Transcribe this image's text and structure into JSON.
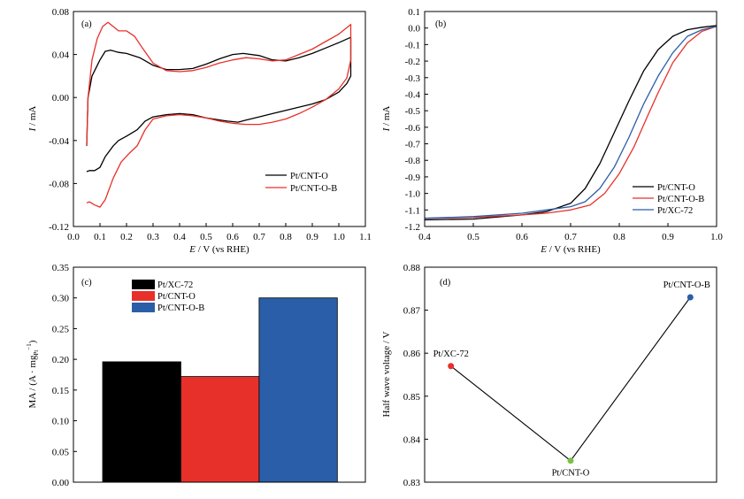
{
  "colors": {
    "black": "#000000",
    "red": "#e8302a",
    "blue": "#2a5ea8",
    "green": "#7ac143"
  },
  "chart_data": [
    {
      "id": "a",
      "panel_label": "(a)",
      "type": "line",
      "xlabel_var": "E",
      "xlabel_rest": " / V (vs RHE)",
      "ylabel_var": "I",
      "ylabel_rest": " / mA",
      "xlim": [
        0.0,
        1.1
      ],
      "ylim": [
        -0.12,
        0.08
      ],
      "xticks": [
        "0.0",
        "0.1",
        "0.2",
        "0.3",
        "0.4",
        "0.5",
        "0.6",
        "0.7",
        "0.8",
        "0.9",
        "1.0",
        "1.1"
      ],
      "xtick_values": [
        0.0,
        0.1,
        0.2,
        0.3,
        0.4,
        0.5,
        0.6,
        0.7,
        0.8,
        0.9,
        1.0,
        1.1
      ],
      "yticks": [
        "0.08",
        "0.04",
        "0.00",
        "-0.04",
        "-0.08",
        "-0.12"
      ],
      "ytick_values": [
        0.08,
        0.04,
        0.0,
        -0.04,
        -0.08,
        -0.12
      ],
      "legend_position": "bottom-right",
      "series": [
        {
          "name": "Pt/CNT-O",
          "color": "#000000",
          "points": [
            [
              0.05,
              -0.045
            ],
            [
              0.055,
              0.0
            ],
            [
              0.07,
              0.02
            ],
            [
              0.1,
              0.035
            ],
            [
              0.12,
              0.043
            ],
            [
              0.14,
              0.044
            ],
            [
              0.17,
              0.042
            ],
            [
              0.2,
              0.041
            ],
            [
              0.25,
              0.037
            ],
            [
              0.3,
              0.03
            ],
            [
              0.35,
              0.026
            ],
            [
              0.4,
              0.026
            ],
            [
              0.45,
              0.027
            ],
            [
              0.5,
              0.031
            ],
            [
              0.55,
              0.036
            ],
            [
              0.6,
              0.04
            ],
            [
              0.64,
              0.041
            ],
            [
              0.7,
              0.039
            ],
            [
              0.75,
              0.035
            ],
            [
              0.8,
              0.034
            ],
            [
              0.85,
              0.037
            ],
            [
              0.9,
              0.041
            ],
            [
              0.95,
              0.046
            ],
            [
              1.0,
              0.051
            ],
            [
              1.045,
              0.056
            ],
            [
              1.045,
              0.02
            ],
            [
              1.03,
              0.013
            ],
            [
              1.0,
              0.005
            ],
            [
              0.95,
              -0.002
            ],
            [
              0.9,
              -0.006
            ],
            [
              0.85,
              -0.009
            ],
            [
              0.8,
              -0.012
            ],
            [
              0.75,
              -0.015
            ],
            [
              0.7,
              -0.018
            ],
            [
              0.65,
              -0.021
            ],
            [
              0.62,
              -0.023
            ],
            [
              0.58,
              -0.022
            ],
            [
              0.5,
              -0.019
            ],
            [
              0.45,
              -0.016
            ],
            [
              0.4,
              -0.015
            ],
            [
              0.35,
              -0.016
            ],
            [
              0.3,
              -0.018
            ],
            [
              0.27,
              -0.022
            ],
            [
              0.24,
              -0.03
            ],
            [
              0.2,
              -0.036
            ],
            [
              0.17,
              -0.04
            ],
            [
              0.15,
              -0.045
            ],
            [
              0.12,
              -0.055
            ],
            [
              0.1,
              -0.065
            ],
            [
              0.08,
              -0.068
            ],
            [
              0.06,
              -0.068
            ],
            [
              0.05,
              -0.069
            ]
          ]
        },
        {
          "name": "Pt/CNT-O-B",
          "color": "#e8302a",
          "points": [
            [
              0.05,
              -0.045
            ],
            [
              0.055,
              0.0
            ],
            [
              0.07,
              0.035
            ],
            [
              0.09,
              0.055
            ],
            [
              0.11,
              0.066
            ],
            [
              0.13,
              0.07
            ],
            [
              0.15,
              0.066
            ],
            [
              0.17,
              0.062
            ],
            [
              0.2,
              0.062
            ],
            [
              0.23,
              0.057
            ],
            [
              0.26,
              0.046
            ],
            [
              0.3,
              0.032
            ],
            [
              0.35,
              0.025
            ],
            [
              0.4,
              0.024
            ],
            [
              0.45,
              0.025
            ],
            [
              0.5,
              0.028
            ],
            [
              0.55,
              0.032
            ],
            [
              0.6,
              0.035
            ],
            [
              0.65,
              0.037
            ],
            [
              0.7,
              0.036
            ],
            [
              0.75,
              0.034
            ],
            [
              0.8,
              0.035
            ],
            [
              0.85,
              0.04
            ],
            [
              0.9,
              0.045
            ],
            [
              0.95,
              0.052
            ],
            [
              1.0,
              0.059
            ],
            [
              1.045,
              0.068
            ],
            [
              1.045,
              0.035
            ],
            [
              1.03,
              0.018
            ],
            [
              1.0,
              0.008
            ],
            [
              0.95,
              -0.002
            ],
            [
              0.9,
              -0.009
            ],
            [
              0.85,
              -0.015
            ],
            [
              0.8,
              -0.02
            ],
            [
              0.75,
              -0.023
            ],
            [
              0.7,
              -0.025
            ],
            [
              0.65,
              -0.025
            ],
            [
              0.6,
              -0.024
            ],
            [
              0.55,
              -0.022
            ],
            [
              0.5,
              -0.019
            ],
            [
              0.45,
              -0.017
            ],
            [
              0.4,
              -0.016
            ],
            [
              0.35,
              -0.017
            ],
            [
              0.3,
              -0.02
            ],
            [
              0.27,
              -0.03
            ],
            [
              0.24,
              -0.045
            ],
            [
              0.21,
              -0.052
            ],
            [
              0.18,
              -0.06
            ],
            [
              0.15,
              -0.075
            ],
            [
              0.12,
              -0.095
            ],
            [
              0.1,
              -0.102
            ],
            [
              0.08,
              -0.1
            ],
            [
              0.06,
              -0.097
            ],
            [
              0.05,
              -0.098
            ]
          ]
        }
      ]
    },
    {
      "id": "b",
      "panel_label": "(b)",
      "type": "line",
      "xlabel_var": "E",
      "xlabel_rest": " / V (vs RHE)",
      "ylabel_var": "I",
      "ylabel_rest": " / mA",
      "xlim": [
        0.4,
        1.0
      ],
      "ylim": [
        -1.2,
        0.1
      ],
      "xticks": [
        "0.4",
        "0.5",
        "0.6",
        "0.7",
        "0.8",
        "0.9",
        "1.0"
      ],
      "xtick_values": [
        0.4,
        0.5,
        0.6,
        0.7,
        0.8,
        0.9,
        1.0
      ],
      "yticks": [
        "0.1",
        "0.0",
        "-0.1",
        "-0.2",
        "-0.3",
        "-0.4",
        "-0.5",
        "-0.6",
        "-0.7",
        "-0.8",
        "-0.9",
        "-1.0",
        "-1.1",
        "-1.2"
      ],
      "ytick_values": [
        0.1,
        0.0,
        -0.1,
        -0.2,
        -0.3,
        -0.4,
        -0.5,
        -0.6,
        -0.7,
        -0.8,
        -0.9,
        -1.0,
        -1.1,
        -1.2
      ],
      "legend_position": "bottom-right",
      "series": [
        {
          "name": "Pt/CNT-O",
          "color": "#000000",
          "points": [
            [
              0.4,
              -1.16
            ],
            [
              0.5,
              -1.155
            ],
            [
              0.6,
              -1.13
            ],
            [
              0.65,
              -1.11
            ],
            [
              0.7,
              -1.06
            ],
            [
              0.73,
              -0.97
            ],
            [
              0.76,
              -0.82
            ],
            [
              0.79,
              -0.63
            ],
            [
              0.82,
              -0.44
            ],
            [
              0.85,
              -0.26
            ],
            [
              0.88,
              -0.13
            ],
            [
              0.91,
              -0.05
            ],
            [
              0.94,
              -0.01
            ],
            [
              0.97,
              0.005
            ],
            [
              1.0,
              0.015
            ]
          ]
        },
        {
          "name": "Pt/CNT-O-B",
          "color": "#e8302a",
          "points": [
            [
              0.4,
              -1.15
            ],
            [
              0.5,
              -1.145
            ],
            [
              0.6,
              -1.13
            ],
            [
              0.65,
              -1.12
            ],
            [
              0.7,
              -1.1
            ],
            [
              0.74,
              -1.07
            ],
            [
              0.77,
              -1.0
            ],
            [
              0.8,
              -0.88
            ],
            [
              0.83,
              -0.72
            ],
            [
              0.86,
              -0.52
            ],
            [
              0.88,
              -0.39
            ],
            [
              0.91,
              -0.21
            ],
            [
              0.94,
              -0.09
            ],
            [
              0.97,
              -0.02
            ],
            [
              1.0,
              0.01
            ]
          ]
        },
        {
          "name": "Pt/XC-72",
          "color": "#2a5ea8",
          "points": [
            [
              0.4,
              -1.15
            ],
            [
              0.5,
              -1.14
            ],
            [
              0.6,
              -1.12
            ],
            [
              0.65,
              -1.1
            ],
            [
              0.7,
              -1.08
            ],
            [
              0.73,
              -1.05
            ],
            [
              0.76,
              -0.97
            ],
            [
              0.79,
              -0.84
            ],
            [
              0.82,
              -0.66
            ],
            [
              0.85,
              -0.46
            ],
            [
              0.88,
              -0.29
            ],
            [
              0.91,
              -0.15
            ],
            [
              0.94,
              -0.05
            ],
            [
              0.97,
              -0.01
            ],
            [
              1.0,
              0.01
            ]
          ]
        }
      ]
    },
    {
      "id": "c",
      "panel_label": "(c)",
      "type": "bar",
      "ylabel": "MA / (A · mg",
      "ylabel_sub": "Pt",
      "ylabel_sup": "−1",
      "ylabel_close": ")",
      "ylim": [
        0.0,
        0.35
      ],
      "yticks": [
        "0.35",
        "0.30",
        "0.25",
        "0.20",
        "0.15",
        "0.10",
        "0.05",
        "0.00"
      ],
      "ytick_values": [
        0.35,
        0.3,
        0.25,
        0.2,
        0.15,
        0.1,
        0.05,
        0.0
      ],
      "legend_position": "top-left",
      "categories": [
        "Pt/XC-72",
        "Pt/CNT-O",
        "Pt/CNT-O-B"
      ],
      "values": [
        0.196,
        0.172,
        0.3
      ],
      "bar_colors": [
        "#000000",
        "#e8302a",
        "#2a5ea8"
      ]
    },
    {
      "id": "d",
      "panel_label": "(d)",
      "type": "line",
      "ylabel": "Half wave voltage / V",
      "ylim": [
        0.83,
        0.88
      ],
      "yticks": [
        "0.88",
        "0.87",
        "0.86",
        "0.85",
        "0.84",
        "0.83"
      ],
      "ytick_values": [
        0.88,
        0.87,
        0.86,
        0.85,
        0.84,
        0.83
      ],
      "categories": [
        "Pt/XC-72",
        "Pt/CNT-O",
        "Pt/CNT-O-B"
      ],
      "values": [
        0.857,
        0.835,
        0.873
      ],
      "marker_colors": [
        "#e8302a",
        "#7ac143",
        "#2a5ea8"
      ]
    }
  ]
}
